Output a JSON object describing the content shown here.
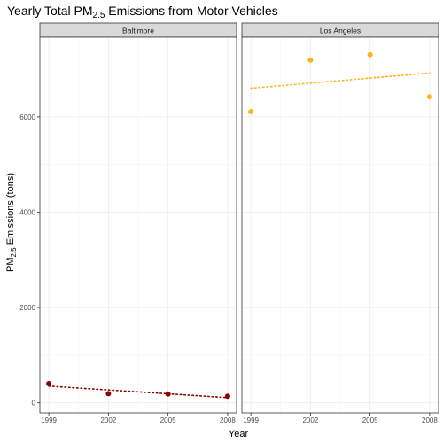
{
  "chart_data": {
    "type": "scatter",
    "title": {
      "prefix": "Yearly Total PM",
      "subscript": "2.5",
      "suffix": " Emissions from Motor Vehicles"
    },
    "xlabel": "Year",
    "ylabel": {
      "prefix": "PM",
      "subscript": "2.5",
      "suffix": " Emissions (tons)"
    },
    "x_ticks": [
      1999,
      2002,
      2005,
      2008
    ],
    "y_ticks": [
      0,
      2000,
      4000,
      6000
    ],
    "xlim": [
      1998.55,
      2008.45
    ],
    "ylim": [
      -210,
      7670
    ],
    "grid": true,
    "facets": [
      {
        "name": "Baltimore",
        "color": "#8b0000",
        "points": [
          {
            "x": 1999,
            "y": 403
          },
          {
            "x": 2002,
            "y": 192
          },
          {
            "x": 2005,
            "y": 185
          },
          {
            "x": 2008,
            "y": 138
          }
        ],
        "trend": {
          "x": [
            1999,
            2008
          ],
          "y": [
            351,
            109
          ]
        }
      },
      {
        "name": "Los Angeles",
        "color": "#ffb31a",
        "points": [
          {
            "x": 1999,
            "y": 6109
          },
          {
            "x": 2002,
            "y": 7188
          },
          {
            "x": 2005,
            "y": 7304
          },
          {
            "x": 2008,
            "y": 6421
          }
        ],
        "trend": {
          "x": [
            1999,
            2008
          ],
          "y": [
            6600,
            6920
          ]
        }
      }
    ]
  }
}
